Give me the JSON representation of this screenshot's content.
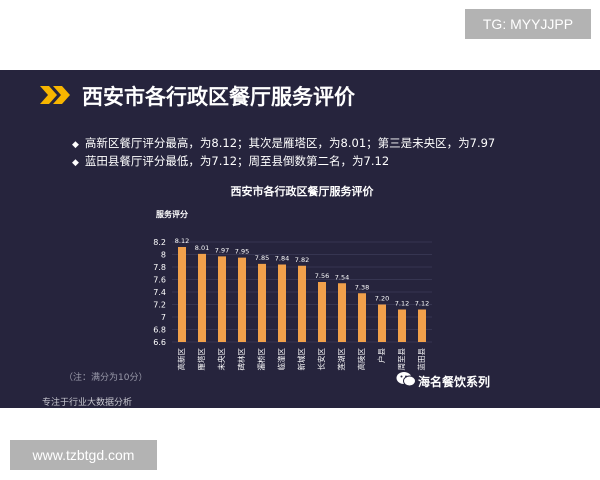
{
  "badges": {
    "top": "TG: MYYJJPP",
    "bottom": "www.tzbtgd.com"
  },
  "slide": {
    "title": "西安市各行政区餐厅服务评价",
    "bullets": [
      "高新区餐厅评分最高，为8.12；其次是雁塔区，为8.01；第三是未央区，为7.97",
      "蓝田县餐厅评分最低，为7.12；周至县倒数第二名，为7.12"
    ],
    "note": "（注：满分为10分）",
    "footer": "专注于行业大数据分析",
    "brand": "海名餐饮系列",
    "colors": {
      "background": "#26243d",
      "bar": "#f0a04b",
      "accent": "#f7b500"
    }
  },
  "chart_data": {
    "type": "bar",
    "title": "西安市各行政区餐厅服务评价",
    "ylabel": "服务评分",
    "xlabel": "",
    "ylim": [
      6.6,
      8.2
    ],
    "yticks": [
      "6.6",
      "6.8",
      "7",
      "7.2",
      "7.4",
      "7.6",
      "7.8",
      "8",
      "8.2"
    ],
    "categories": [
      "高新区",
      "雁塔区",
      "未央区",
      "碑林区",
      "灞桥区",
      "临潼区",
      "新城区",
      "长安区",
      "莲湖区",
      "高陵区",
      "户县",
      "周至县",
      "蓝田县"
    ],
    "values": [
      8.12,
      8.01,
      7.97,
      7.95,
      7.85,
      7.84,
      7.82,
      7.56,
      7.54,
      7.38,
      7.2,
      7.12,
      7.12
    ],
    "labels": [
      "8.12",
      "8.01",
      "7.97",
      "7.95",
      "7.85",
      "7.84",
      "7.82",
      "7.56",
      "7.54",
      "7.38",
      "7.20",
      "7.12",
      "7.12"
    ],
    "grid": true,
    "legend": "none"
  }
}
